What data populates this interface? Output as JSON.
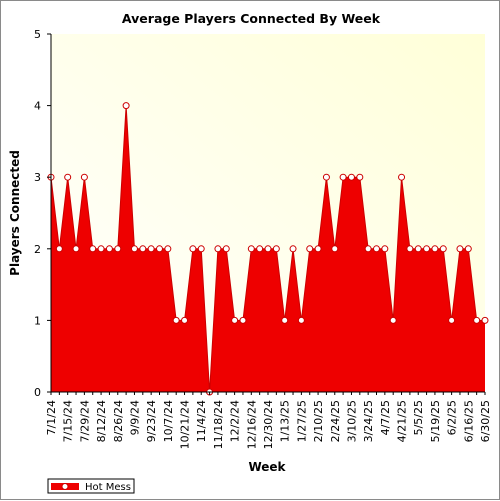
{
  "chart_data": {
    "type": "area",
    "title": "Average Players Connected By Week",
    "xlabel": "Week",
    "ylabel": "Players Connected",
    "ylim": [
      0,
      5
    ],
    "yticks": [
      0,
      1,
      2,
      3,
      4,
      5
    ],
    "grid": false,
    "legend_position": "bottom-left",
    "background_gradient": [
      "#ffffd8",
      "#ffffff"
    ],
    "fill_color": "#ee0000",
    "line_color": "#cc0000",
    "series": [
      {
        "name": "Hot Mess",
        "x": [
          "7/1/24",
          "7/8/24",
          "7/15/24",
          "7/22/24",
          "7/29/24",
          "8/5/24",
          "8/12/24",
          "8/19/24",
          "8/26/24",
          "9/2/24",
          "9/9/24",
          "9/16/24",
          "9/23/24",
          "9/30/24",
          "10/7/24",
          "10/14/24",
          "10/21/24",
          "10/28/24",
          "11/4/24",
          "11/11/24",
          "11/18/24",
          "11/25/24",
          "12/2/24",
          "12/9/24",
          "12/16/24",
          "12/23/24",
          "12/30/24",
          "1/6/25",
          "1/13/25",
          "1/20/25",
          "1/27/25",
          "2/3/25",
          "2/10/25",
          "2/17/25",
          "2/24/25",
          "3/3/25",
          "3/10/25",
          "3/17/25",
          "3/24/25",
          "3/31/25",
          "4/7/25",
          "4/14/25",
          "4/21/25",
          "4/28/25",
          "5/5/25",
          "5/12/25",
          "5/19/25",
          "5/26/25",
          "6/2/25",
          "6/9/25",
          "6/16/25",
          "6/23/25",
          "6/30/25"
        ],
        "values": [
          3,
          2,
          3,
          2,
          3,
          2,
          2,
          2,
          2,
          4,
          2,
          2,
          2,
          2,
          2,
          1,
          1,
          2,
          2,
          0,
          2,
          2,
          1,
          1,
          2,
          2,
          2,
          2,
          1,
          2,
          1,
          2,
          2,
          3,
          2,
          3,
          3,
          3,
          2,
          2,
          2,
          1,
          3,
          2,
          2,
          2,
          2,
          2,
          1,
          2,
          2,
          1,
          1
        ]
      }
    ],
    "tick_labels": [
      "7/1/24",
      "7/15/24",
      "7/29/24",
      "8/12/24",
      "8/26/24",
      "9/9/24",
      "9/23/24",
      "10/7/24",
      "10/21/24",
      "11/4/24",
      "11/18/24",
      "12/2/24",
      "12/16/24",
      "12/30/24",
      "1/13/25",
      "1/27/25",
      "2/10/25",
      "2/24/25",
      "3/10/25",
      "3/24/25",
      "4/7/25",
      "4/21/25",
      "5/5/25",
      "5/19/25",
      "6/2/25",
      "6/16/25",
      "6/30/25"
    ]
  }
}
